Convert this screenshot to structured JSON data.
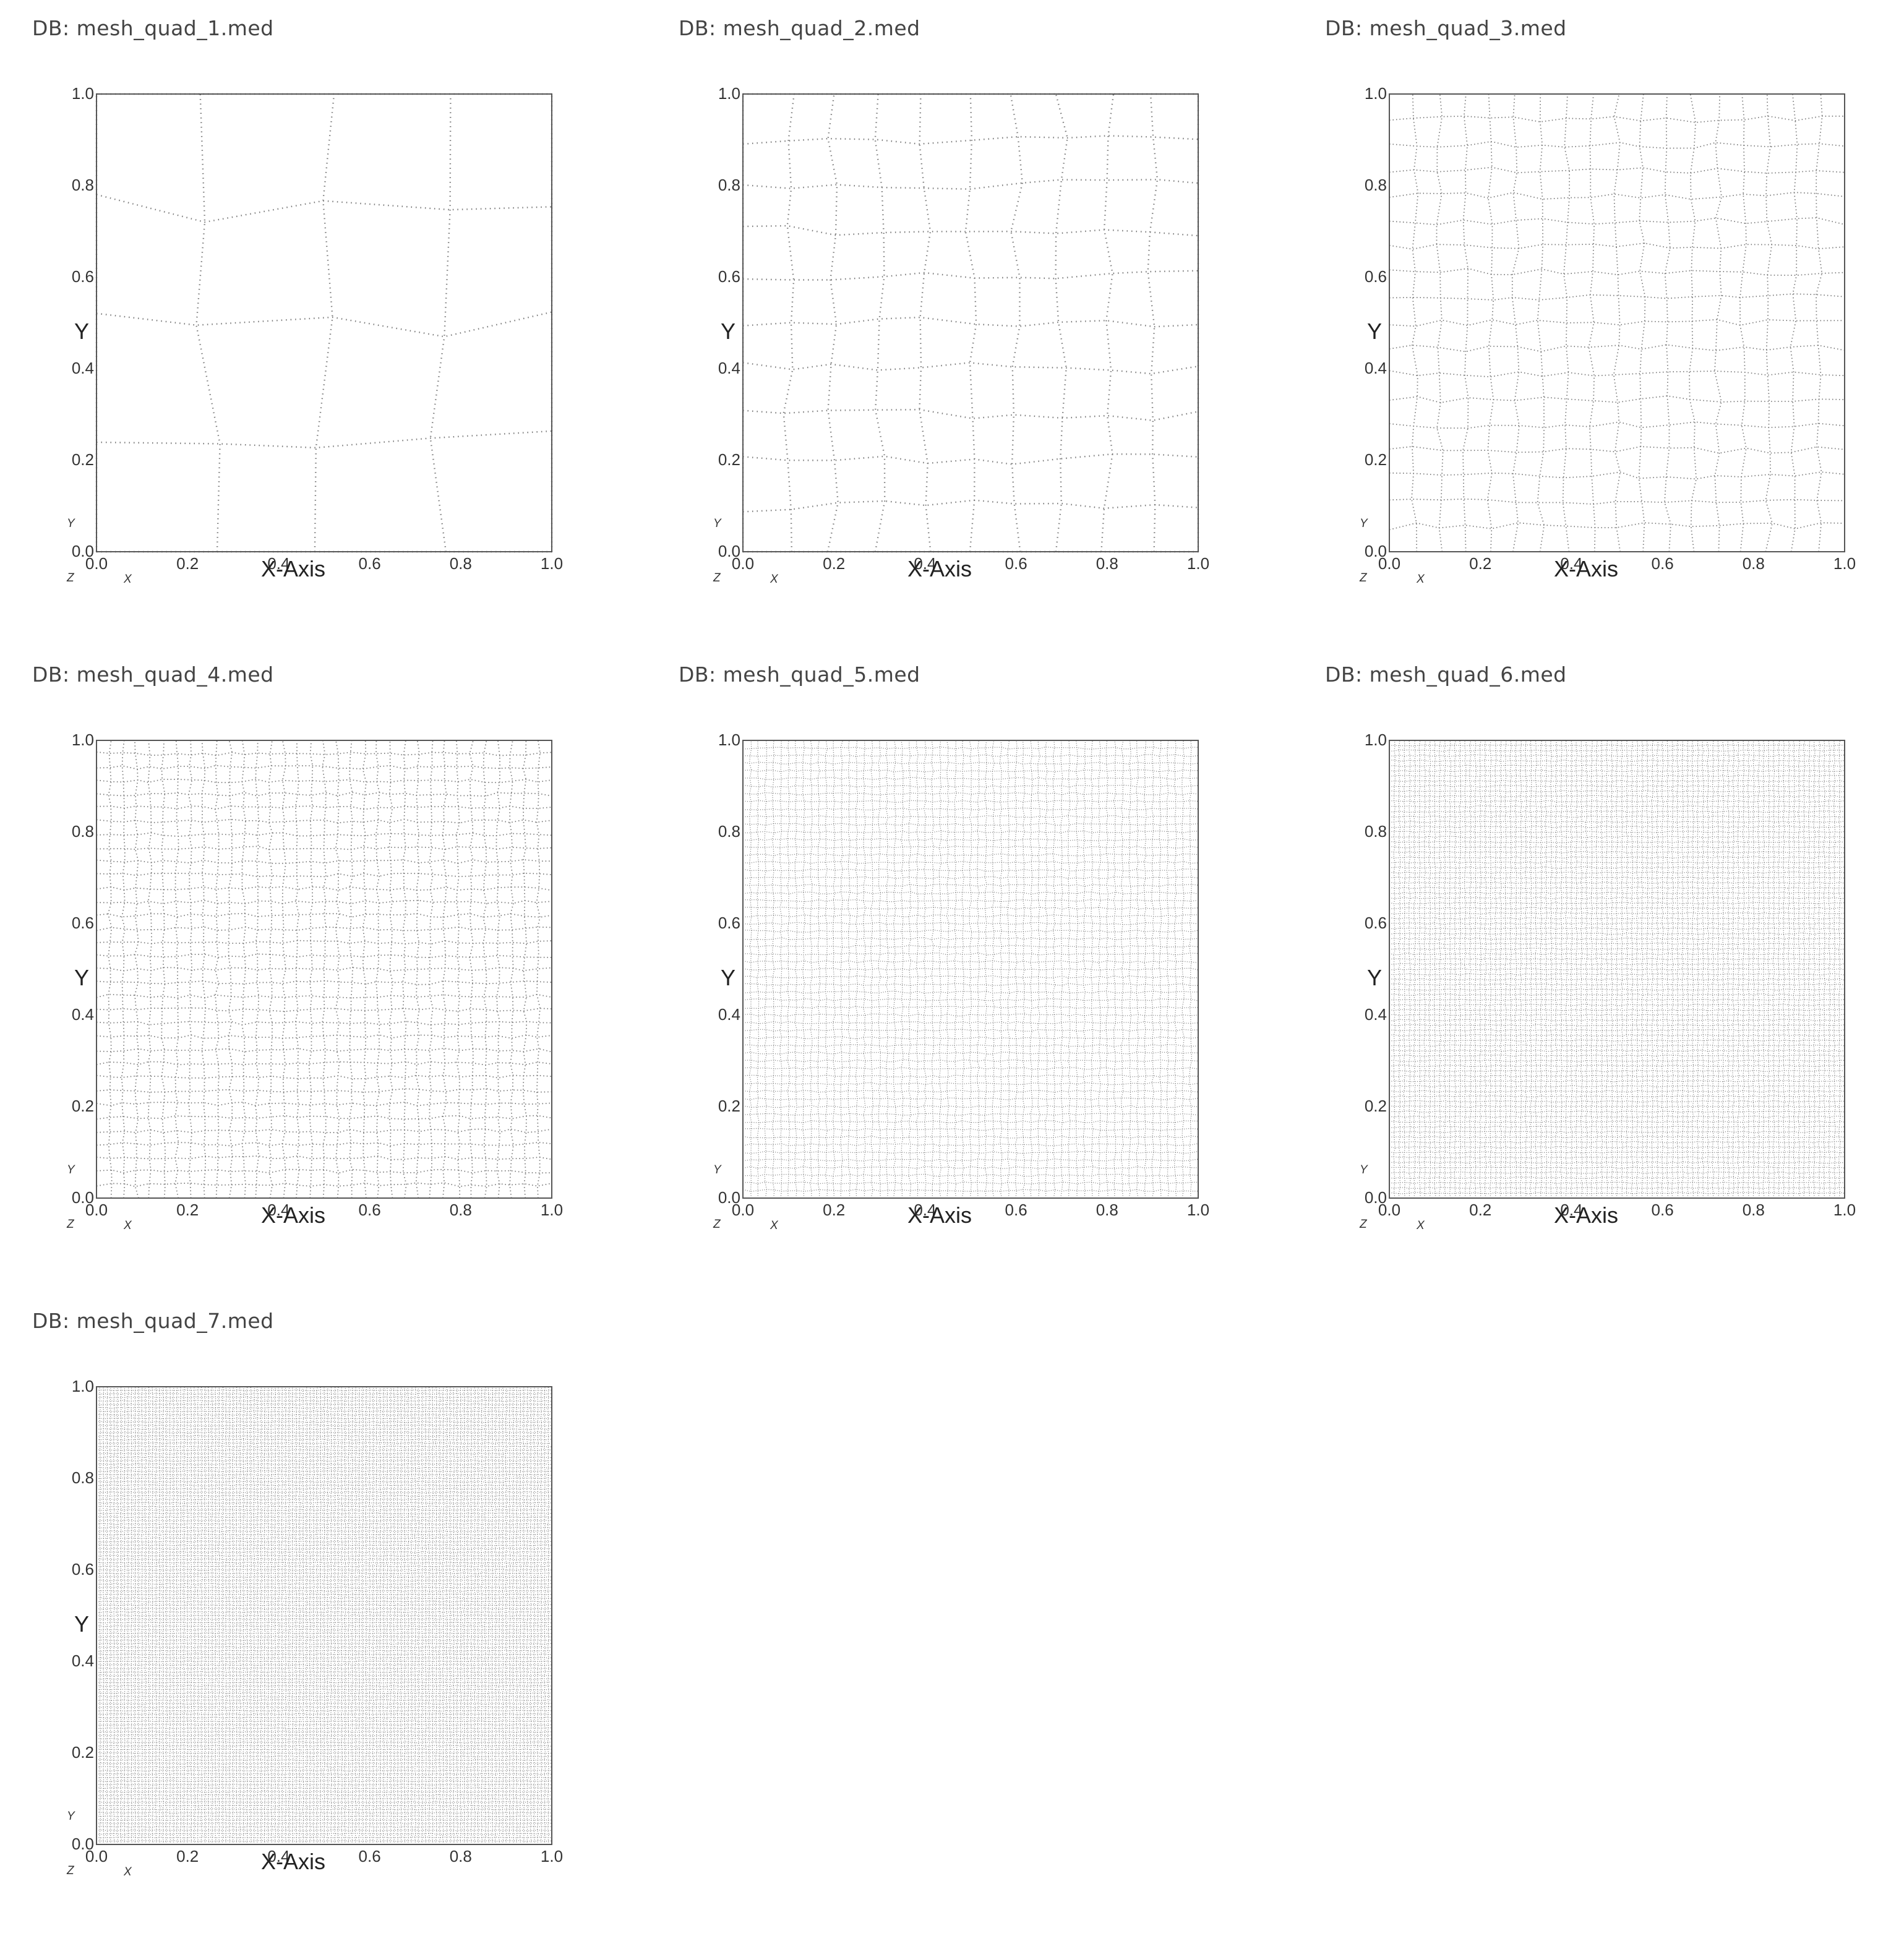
{
  "panels": [
    {
      "title": "DB: mesh_quad_1.med",
      "n": 4
    },
    {
      "title": "DB: mesh_quad_2.med",
      "n": 10
    },
    {
      "title": "DB: mesh_quad_3.med",
      "n": 18
    },
    {
      "title": "DB: mesh_quad_4.med",
      "n": 34
    },
    {
      "title": "DB: mesh_quad_5.med",
      "n": 60
    },
    {
      "title": "DB: mesh_quad_6.med",
      "n": 90
    },
    {
      "title": "DB: mesh_quad_7.med",
      "n": 130
    }
  ],
  "axes": {
    "x_title": "X-Axis",
    "y_title": "Y",
    "x_ticks": [
      "0.0",
      "0.2",
      "0.4",
      "0.6",
      "0.8",
      "1.0"
    ],
    "y_ticks": [
      "0.0",
      "0.2",
      "0.4",
      "0.6",
      "0.8",
      "1.0"
    ],
    "triad": {
      "y": "Y",
      "z": "Z",
      "x": "X"
    }
  },
  "colors": {
    "frame": "#555555",
    "mesh": "#7a7a7a",
    "text": "#333333"
  }
}
